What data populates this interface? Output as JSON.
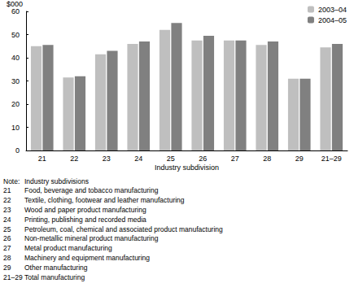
{
  "chart_data": {
    "type": "bar",
    "y_label": "$000",
    "x_label": "Industry subdivision",
    "categories": [
      "21",
      "22",
      "23",
      "24",
      "25",
      "26",
      "27",
      "28",
      "29",
      "21–29"
    ],
    "series": [
      {
        "name": "2003–04",
        "color": "#bfbfbf",
        "values": [
          45,
          31.5,
          41.5,
          46,
          52,
          47.5,
          47.5,
          45.5,
          31,
          44.5
        ]
      },
      {
        "name": "2004–05",
        "color": "#808080",
        "values": [
          45.5,
          32,
          43,
          47,
          55,
          49.5,
          47.5,
          47,
          31,
          46
        ]
      }
    ],
    "ylim": [
      0,
      60
    ],
    "yticks": [
      0,
      10,
      20,
      30,
      40,
      50,
      60
    ],
    "grid": false,
    "legend": "upper right",
    "annotations": [
      {
        "code": "Note:",
        "text": "Industry subdivisions"
      },
      {
        "code": "21",
        "text": "Food, beverage and tobacco manufacturing"
      },
      {
        "code": "22",
        "text": "Textile, clothing, footwear and leather manufacturing"
      },
      {
        "code": "23",
        "text": "Wood and paper product manufacturing"
      },
      {
        "code": "24",
        "text": "Printing, publishing and recorded media"
      },
      {
        "code": "25",
        "text": "Petroleum, coal, chemical and associated product manufacturing"
      },
      {
        "code": "26",
        "text": "Non-metallic mineral product manufacturing"
      },
      {
        "code": "27",
        "text": "Metal product manufacturing"
      },
      {
        "code": "28",
        "text": "Machinery and equipment manufacturing"
      },
      {
        "code": "29",
        "text": "Other manufacturing"
      },
      {
        "code": "21–29",
        "text": "Total manufacturing"
      }
    ]
  }
}
